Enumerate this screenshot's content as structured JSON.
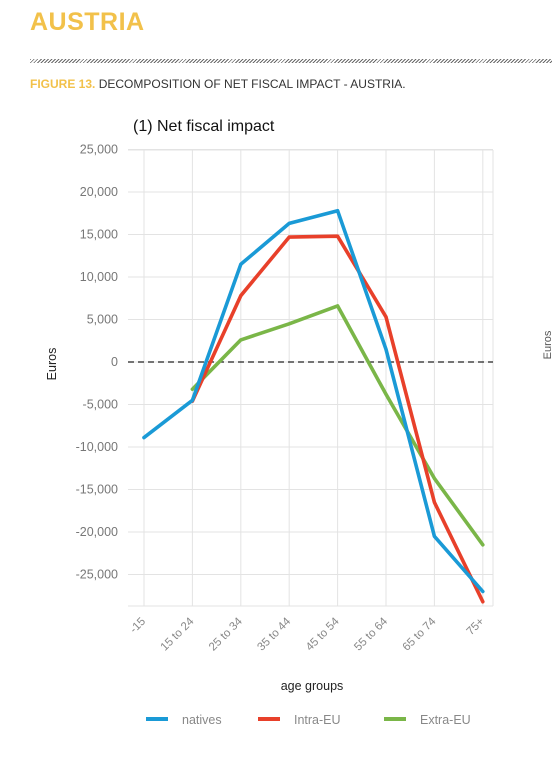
{
  "page": {
    "country_title": "AUSTRIA",
    "figure_label": "FIGURE 13.",
    "figure_caption": "DECOMPOSITION OF NET FISCAL IMPACT - AUSTRIA."
  },
  "colors": {
    "accent": "#f2c14a",
    "natives": "#1a9ad6",
    "intra_eu": "#e8402a",
    "extra_eu": "#7ab648"
  },
  "chart_data": {
    "type": "line",
    "title": "(1) Net fiscal impact",
    "xlabel": "age groups",
    "ylabel": "Euros",
    "categories": [
      "-15",
      "15 to 24",
      "25 to 34",
      "35 to 44",
      "45 to 54",
      "55 to 64",
      "65 to 74",
      "75+"
    ],
    "y_ticks": [
      25000,
      20000,
      15000,
      10000,
      5000,
      0,
      -5000,
      -10000,
      -15000,
      -20000,
      -25000
    ],
    "y_tick_labels": [
      "25,000",
      "20,000",
      "15,000",
      "10,000",
      "5,000",
      "0",
      "-5,000",
      "-10,000",
      "-15,000",
      "-20,000",
      "-25,000"
    ],
    "ylim": [
      -30000,
      27000
    ],
    "grid": true,
    "zero_line": "dashed",
    "legend_position": "bottom",
    "series": [
      {
        "name": "natives",
        "color": "#1a9ad6",
        "points": [
          [
            0,
            -8900
          ],
          [
            1,
            -4500
          ],
          [
            2,
            11500
          ],
          [
            3,
            16300
          ],
          [
            4,
            17800
          ],
          [
            5,
            1500
          ],
          [
            6,
            -20500
          ],
          [
            7,
            -27000
          ]
        ]
      },
      {
        "name": "Intra-EU",
        "color": "#e8402a",
        "points": [
          [
            1,
            -4600
          ],
          [
            2,
            7800
          ],
          [
            3,
            14700
          ],
          [
            4,
            14800
          ],
          [
            5,
            5300
          ],
          [
            6,
            -16500
          ],
          [
            7,
            -28200
          ]
        ]
      },
      {
        "name": "Extra-EU",
        "color": "#7ab648",
        "points": [
          [
            1,
            -3200
          ],
          [
            2,
            2600
          ],
          [
            3,
            4500
          ],
          [
            4,
            6600
          ],
          [
            5,
            -3800
          ],
          [
            6,
            -13700
          ],
          [
            7,
            -21500
          ]
        ]
      }
    ]
  },
  "right_panel_partial": {
    "ylabel": "Euros"
  }
}
